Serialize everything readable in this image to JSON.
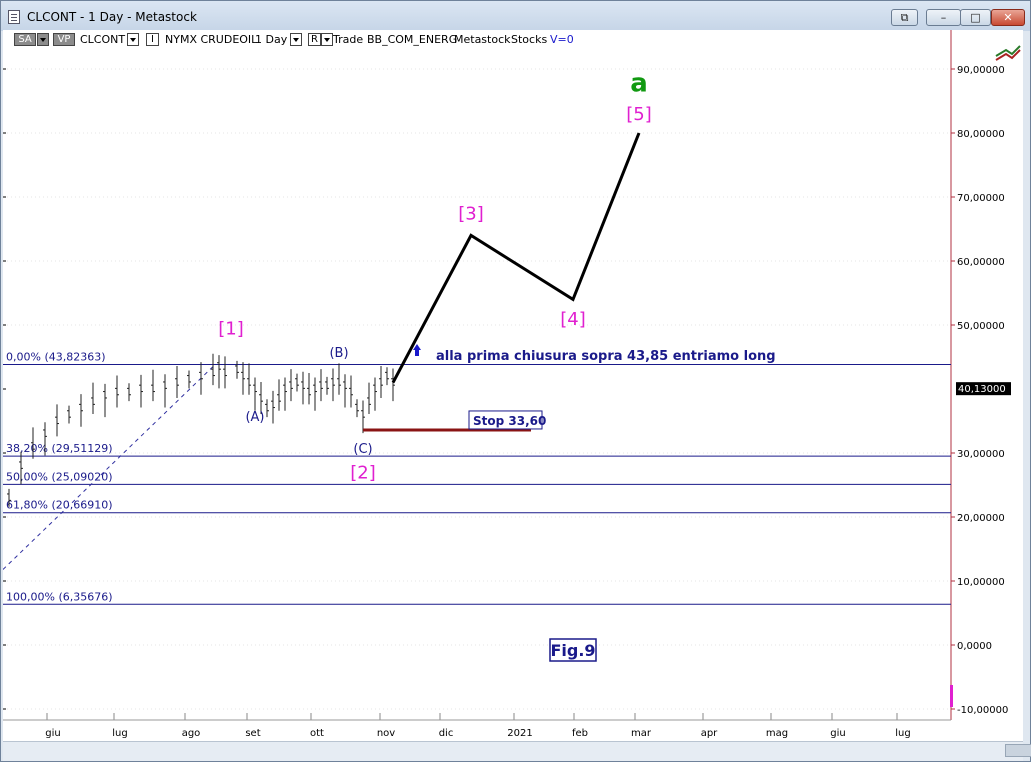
{
  "window": {
    "title": "CLCONT - 1 Day - Metastock",
    "buttons": {
      "restore": "⧉",
      "minimize": "–",
      "maximize": "□",
      "close": "✕"
    }
  },
  "toolbar": {
    "sa": "SA",
    "vp": "VP",
    "symbol": "CLCONT",
    "i_box": "I",
    "exchange": "NYMX CRUDEOIL",
    "period": "1 Day",
    "r_box": "R",
    "trade": "Trade",
    "feed": "BB_COM_ENERG",
    "source": "Metastock",
    "stocks": "Stocks",
    "volume": "V=0"
  },
  "colors": {
    "axis_text": "#000000",
    "fib_line": "#1a1a8a",
    "wave_label_minor": "#1a1a8a",
    "wave_label_major": "#e020d0",
    "top_label": "#119911",
    "projection": "#000000",
    "stop_line": "#8a1414",
    "price_tag_bg": "#000000"
  },
  "chart_data": {
    "type": "line",
    "yticks": [
      "90,00000",
      "80,00000",
      "70,00000",
      "60,00000",
      "50,00000",
      "40,13000",
      "30,00000",
      "20,00000",
      "10,00000",
      "0,0000",
      "-10,00000"
    ],
    "xticks": [
      "giu",
      "lug",
      "ago",
      "set",
      "ott",
      "nov",
      "dic",
      "2021",
      "feb",
      "mar",
      "apr",
      "mag",
      "giu",
      "lug"
    ],
    "ylim": [
      -10,
      92
    ],
    "last_price": "40,13000",
    "fib_levels": [
      {
        "label": "0,00% (43,82363)",
        "value": 43.82
      },
      {
        "label": "38,20% (29,51129)",
        "value": 29.51
      },
      {
        "label": "50,00% (25,09020)",
        "value": 25.09
      },
      {
        "label": "61,80% (20,66910)",
        "value": 20.67
      },
      {
        "label": "100,00% (6,35676)",
        "value": 6.36
      }
    ],
    "price_path": [
      [
        0,
        23
      ],
      [
        2,
        28
      ],
      [
        4,
        31
      ],
      [
        6,
        33
      ],
      [
        8,
        35
      ],
      [
        10,
        36
      ],
      [
        12,
        37
      ],
      [
        14,
        38
      ],
      [
        16,
        39
      ],
      [
        18,
        39.5
      ],
      [
        20,
        39.5
      ],
      [
        22,
        40
      ],
      [
        24,
        40
      ],
      [
        26,
        40.5
      ],
      [
        28,
        41
      ],
      [
        30,
        41.5
      ],
      [
        32,
        42
      ],
      [
        34,
        42.5
      ],
      [
        35,
        43.5
      ],
      [
        36,
        42.5
      ],
      [
        38,
        43
      ],
      [
        39,
        42
      ],
      [
        40,
        41
      ],
      [
        41,
        40
      ],
      [
        42,
        38.5
      ],
      [
        43,
        37
      ],
      [
        44,
        37.5
      ],
      [
        45,
        38.5
      ],
      [
        46,
        40
      ],
      [
        47,
        40.5
      ],
      [
        48,
        41
      ],
      [
        49,
        40.5
      ],
      [
        50,
        39.5
      ],
      [
        51,
        40
      ],
      [
        52,
        40.5
      ],
      [
        53,
        40.5
      ],
      [
        54,
        41
      ],
      [
        55,
        41
      ],
      [
        56,
        40.5
      ],
      [
        57,
        39.5
      ],
      [
        58,
        37
      ],
      [
        59,
        36
      ],
      [
        60,
        38
      ],
      [
        61,
        40
      ],
      [
        62,
        41
      ],
      [
        63,
        42
      ],
      [
        64,
        41
      ]
    ],
    "wave_labels": [
      {
        "text": "[1]",
        "x": 37,
        "y": 48.5,
        "style": "major"
      },
      {
        "text": "(A)",
        "x": 41,
        "y": 35.0,
        "style": "minor"
      },
      {
        "text": "(B)",
        "x": 55,
        "y": 45.0,
        "style": "minor"
      },
      {
        "text": "(C)",
        "x": 59,
        "y": 30.0,
        "style": "minor"
      },
      {
        "text": "[2]",
        "x": 59,
        "y": 26.0,
        "style": "major"
      },
      {
        "text": "[3]",
        "x": 77,
        "y": 66.5,
        "style": "major"
      },
      {
        "text": "[4]",
        "x": 94,
        "y": 50.0,
        "style": "major"
      },
      {
        "text": "[5]",
        "x": 105,
        "y": 82.0,
        "style": "major"
      },
      {
        "text": "a",
        "x": 105,
        "y": 86.5,
        "style": "top"
      }
    ],
    "projection": [
      [
        64,
        41
      ],
      [
        77,
        64
      ],
      [
        94,
        54
      ],
      [
        105,
        80
      ]
    ],
    "stop": {
      "label": "Stop 33,60",
      "value": 33.6,
      "x_start": 59,
      "x_end": 87
    },
    "annotation": "alla prima chiusura sopra 43,85 entriamo long",
    "figure_label": "Fig.9"
  }
}
